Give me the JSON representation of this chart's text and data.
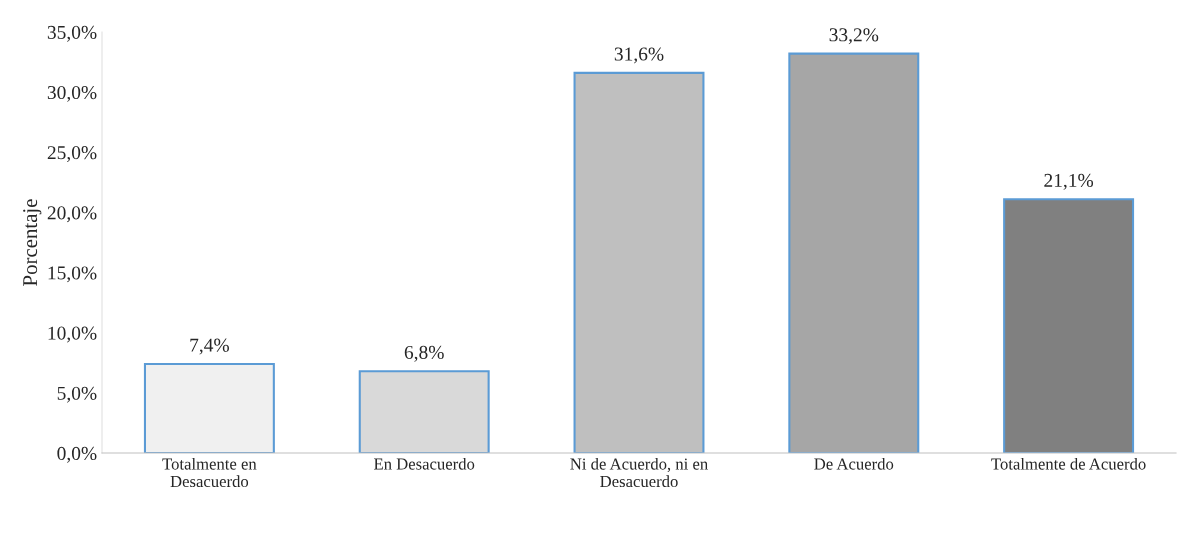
{
  "chart_data": {
    "type": "bar",
    "categories": [
      "Totalmente en\nDesacuerdo",
      "En Desacuerdo",
      "Ni de Acuerdo, ni en\nDesacuerdo",
      "De Acuerdo",
      "Totalmente de Acuerdo"
    ],
    "values": [
      7.4,
      6.8,
      31.6,
      33.2,
      21.1
    ],
    "colors": [
      "#f0f0f0",
      "#d9d9d9",
      "#bfbfbf",
      "#a6a6a6",
      "#808080"
    ],
    "value_labels": [
      "7,4%",
      "6,8%",
      "31,6%",
      "33,2%",
      "21,1%"
    ],
    "ylabel": "Porcentaje",
    "ylim": [
      0,
      35
    ],
    "yticks": [
      {
        "value": 0,
        "label": "0,0%"
      },
      {
        "value": 5,
        "label": "5,0%"
      },
      {
        "value": 10,
        "label": "10,0%"
      },
      {
        "value": 15,
        "label": "15,0%"
      },
      {
        "value": 20,
        "label": "20,0%"
      },
      {
        "value": 25,
        "label": "25,0%"
      },
      {
        "value": 30,
        "label": "30,0%"
      },
      {
        "value": 35,
        "label": "35,0%"
      }
    ],
    "grid": false,
    "legend": false
  }
}
